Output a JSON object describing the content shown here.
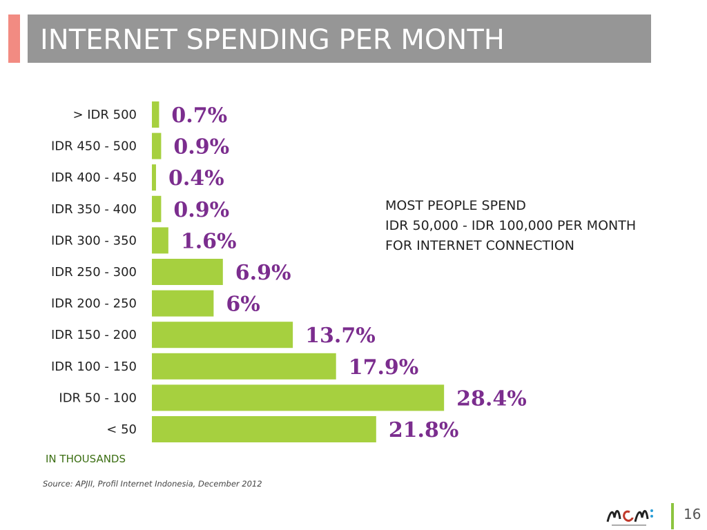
{
  "slide": {
    "title": "INTERNET SPENDING PER MONTH",
    "unit_note": "IN THOUSANDS",
    "source": "Source: APJII, Profil Internet Indonesia, December 2012",
    "callout_lines": [
      "MOST PEOPLE SPEND",
      "IDR 50,000 - IDR 100,000 PER MONTH",
      "FOR INTERNET CONNECTION"
    ],
    "page_number": "16"
  },
  "colors": {
    "title_band": "#969696",
    "accent": "#f28b82",
    "bar": "#a6d03f",
    "value_label": "#7b2d8e",
    "unit_note": "#3b6e12",
    "footer_divider": "#8cc43f"
  },
  "chart_data": {
    "type": "bar",
    "orientation": "horizontal",
    "categories": [
      "> IDR 500",
      "IDR 450 - 500",
      "IDR 400 - 450",
      "IDR 350 - 400",
      "IDR 300 - 350",
      "IDR 250 - 300",
      "IDR 200 - 250",
      "IDR 150 - 200",
      "IDR 100 - 150",
      "IDR 50 - 100",
      "< 50"
    ],
    "values": [
      0.7,
      0.9,
      0.4,
      0.9,
      1.6,
      6.9,
      6,
      13.7,
      17.9,
      28.4,
      21.8
    ],
    "value_labels": [
      "0.7%",
      "0.9%",
      "0.4%",
      "0.9%",
      "1.6%",
      "6.9%",
      "6%",
      "13.7%",
      "17.9%",
      "28.4%",
      "21.8%"
    ],
    "grid": false,
    "legend": "none"
  }
}
